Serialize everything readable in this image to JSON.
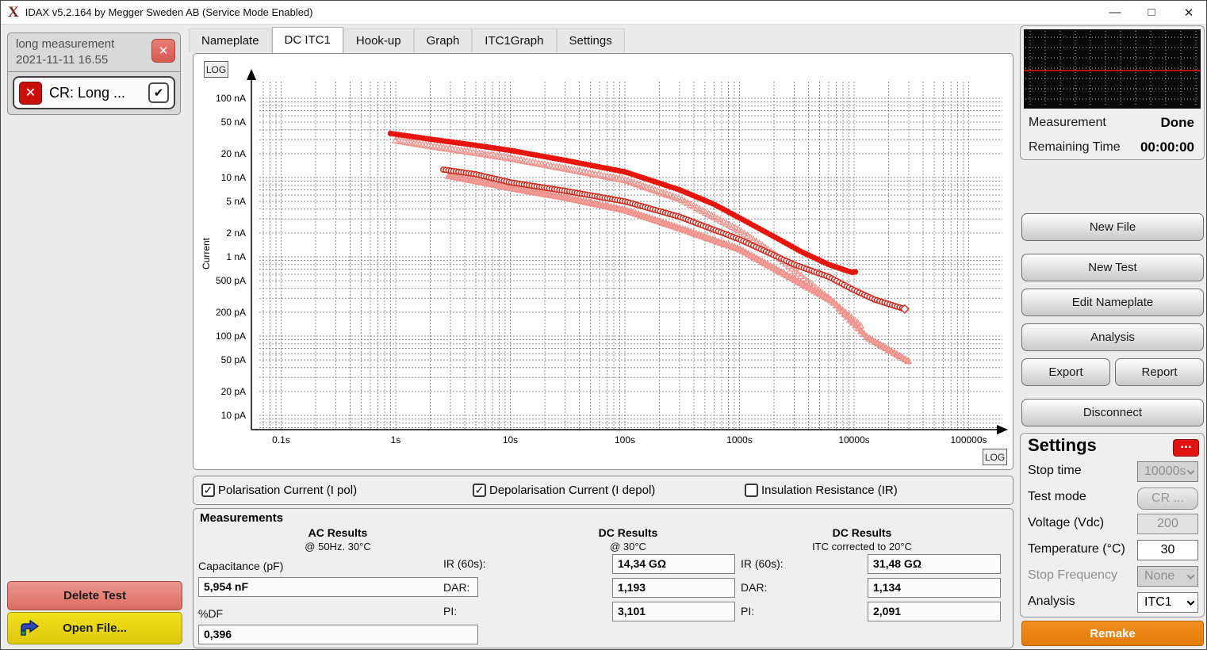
{
  "window": {
    "title": "IDAX v5.2.164 by Megger Sweden AB (Service Mode Enabled)",
    "controls": [
      {
        "name": "minimize",
        "glyph": "—"
      },
      {
        "name": "maximize",
        "glyph": "□"
      },
      {
        "name": "close",
        "glyph": "✕"
      }
    ]
  },
  "sidebar": {
    "test_title": "long measurement",
    "test_date": "2021-11-11 16.55",
    "close_glyph": "✕",
    "item_label": "CR: Long ...",
    "item_icon_glyph": "✕",
    "item_check_glyph": "✔",
    "delete_button": "Delete Test",
    "open_button": "Open File..."
  },
  "tabs": {
    "items": [
      "Nameplate",
      "DC ITC1",
      "Hook-up",
      "Graph",
      "ITC1Graph",
      "Settings"
    ],
    "active": "DC ITC1"
  },
  "chart_data": {
    "type": "scatter",
    "axes_scale": "log-log",
    "ylabel": "Current",
    "log_badge": "LOG",
    "grid": true,
    "x_ticks": [
      {
        "label": "0.1s",
        "s": 0.1
      },
      {
        "label": "1s",
        "s": 1
      },
      {
        "label": "10s",
        "s": 10
      },
      {
        "label": "100s",
        "s": 100
      },
      {
        "label": "1000s",
        "s": 1000
      },
      {
        "label": "10000s",
        "s": 10000
      },
      {
        "label": "100000s",
        "s": 100000
      }
    ],
    "y_ticks": [
      {
        "label": "100 nA",
        "pA": 100000
      },
      {
        "label": "50 nA",
        "pA": 50000
      },
      {
        "label": "20 nA",
        "pA": 20000
      },
      {
        "label": "10 nA",
        "pA": 10000
      },
      {
        "label": "5 nA",
        "pA": 5000
      },
      {
        "label": "2 nA",
        "pA": 2000
      },
      {
        "label": "1 nA",
        "pA": 1000
      },
      {
        "label": "500 pA",
        "pA": 500
      },
      {
        "label": "200 pA",
        "pA": 200
      },
      {
        "label": "100 pA",
        "pA": 100
      },
      {
        "label": "50 pA",
        "pA": 50
      },
      {
        "label": "20 pA",
        "pA": 20
      },
      {
        "label": "10 pA",
        "pA": 10
      }
    ],
    "series": [
      {
        "name": "pol-light",
        "marker": "tri-open",
        "color": "#f0938d",
        "fill": "#fbd8d5",
        "step": 0.026,
        "points_t_s_i_pA": [
          [
            1.0,
            29500
          ],
          [
            2,
            25000
          ],
          [
            5,
            20500
          ],
          [
            10,
            17500
          ],
          [
            30,
            13000
          ],
          [
            100,
            9300
          ],
          [
            300,
            5400
          ],
          [
            1000,
            2150
          ],
          [
            2000,
            1100
          ],
          [
            3500,
            560
          ],
          [
            6000,
            300
          ],
          [
            11700,
            131
          ]
        ]
      },
      {
        "name": "depol-light",
        "marker": "tri-fill",
        "color": "#ee8d87",
        "fill": "#f4a19b",
        "step": 0.024,
        "points_t_s_i_pA": [
          [
            2.9,
            10500
          ],
          [
            6,
            8600
          ],
          [
            10,
            7400
          ],
          [
            30,
            5600
          ],
          [
            100,
            3900
          ],
          [
            300,
            2300
          ],
          [
            1000,
            1250
          ],
          [
            3000,
            520
          ],
          [
            6400,
            280
          ],
          [
            13000,
            97
          ],
          [
            30000,
            48
          ]
        ]
      },
      {
        "name": "depol",
        "marker": "open-circle",
        "color": "#ce281d",
        "fill": "#ffffff",
        "step": 0.022,
        "end_diamond": true,
        "points_t_s_i_pA": [
          [
            2.6,
            12600
          ],
          [
            5,
            11000
          ],
          [
            10,
            8700
          ],
          [
            30,
            6800
          ],
          [
            100,
            5000
          ],
          [
            300,
            3200
          ],
          [
            1000,
            1660
          ],
          [
            3000,
            800
          ],
          [
            6000,
            560
          ],
          [
            10000,
            380
          ],
          [
            15000,
            290
          ],
          [
            29000,
            215
          ]
        ]
      },
      {
        "name": "pol",
        "marker": "dot",
        "color": "#e8150c",
        "fill": "#e8150c",
        "step": 0.024,
        "points_t_s_i_pA": [
          [
            0.9,
            36000
          ],
          [
            2,
            30500
          ],
          [
            5,
            25500
          ],
          [
            10,
            22000
          ],
          [
            30,
            16500
          ],
          [
            100,
            11800
          ],
          [
            300,
            7000
          ],
          [
            600,
            4600
          ],
          [
            1000,
            3100
          ],
          [
            2000,
            1800
          ],
          [
            3500,
            1150
          ],
          [
            6000,
            800
          ],
          [
            9000,
            655
          ],
          [
            9800,
            635
          ],
          [
            10800,
            660
          ]
        ]
      }
    ]
  },
  "checkbox_row": {
    "check_glyph": "✓",
    "items": [
      {
        "label": "Polarisation Current (I pol)",
        "checked": true
      },
      {
        "label": "Depolarisation Current (I depol)",
        "checked": true
      },
      {
        "label": "Insulation Resistance (IR)",
        "checked": false
      }
    ]
  },
  "measurements": {
    "title": "Measurements",
    "columns": [
      {
        "header": "AC Results",
        "subheader": "@ 50Hz. 30°C",
        "fields": [
          {
            "label": "Capacitance (pF)",
            "value": "5,954 nF"
          },
          {
            "label": "%DF",
            "value": "0,396"
          }
        ]
      },
      {
        "header": "DC Results",
        "subheader": "@ 30°C",
        "fields": [
          {
            "label": "IR (60s):",
            "value": "14,34 GΩ"
          },
          {
            "label": "DAR:",
            "value": "1,193"
          },
          {
            "label": "PI:",
            "value": "3,101"
          }
        ]
      },
      {
        "header": "DC Results",
        "subheader": "ITC corrected to 20°C",
        "fields": [
          {
            "label": "IR (60s):",
            "value": "31,48 GΩ"
          },
          {
            "label": "DAR:",
            "value": "1,134"
          },
          {
            "label": "PI:",
            "value": "2,091"
          }
        ]
      }
    ]
  },
  "status": {
    "measurement_label": "Measurement",
    "measurement_value": "Done",
    "remaining_label": "Remaining Time",
    "remaining_value": "00:00:00"
  },
  "actions": [
    {
      "label": "New File"
    },
    {
      "label": "New Test"
    },
    {
      "label": "Edit Nameplate"
    },
    {
      "label": "Analysis"
    },
    {
      "label": "Export",
      "half": 1
    },
    {
      "label": "Report",
      "half": 2
    },
    {
      "label": "Disconnect"
    }
  ],
  "settings": {
    "title": "Settings",
    "menu_button": "...",
    "rows": [
      {
        "label": "Stop time",
        "value": "10000s",
        "type": "select",
        "enabled": false,
        "label_dim": false
      },
      {
        "label": "Test mode",
        "value": "CR ...",
        "type": "button",
        "enabled": false,
        "label_dim": false
      },
      {
        "label": "Voltage (Vdc)",
        "value": "200",
        "type": "input",
        "enabled": false,
        "label_dim": false
      },
      {
        "label": "Temperature (°C)",
        "value": "30",
        "type": "input",
        "enabled": true,
        "label_dim": false
      },
      {
        "label": "Stop Frequency",
        "value": "None",
        "type": "select",
        "enabled": false,
        "label_dim": true
      },
      {
        "label": "Analysis",
        "value": "ITC1",
        "type": "select",
        "enabled": true,
        "label_dim": false
      }
    ],
    "remake_button": "Remake"
  },
  "colors": {
    "pol_red": "#e8150c",
    "depol_red": "#ce281d",
    "light_pink": "#f0938d",
    "remake_orange": "#e8820e",
    "delete_salmon": "#dd6e63",
    "open_yellow": "#e6d013",
    "settings_dots_red": "#e01212",
    "mini_chart_line": "#b81414",
    "mini_chart_grid": "#9fcfca"
  }
}
